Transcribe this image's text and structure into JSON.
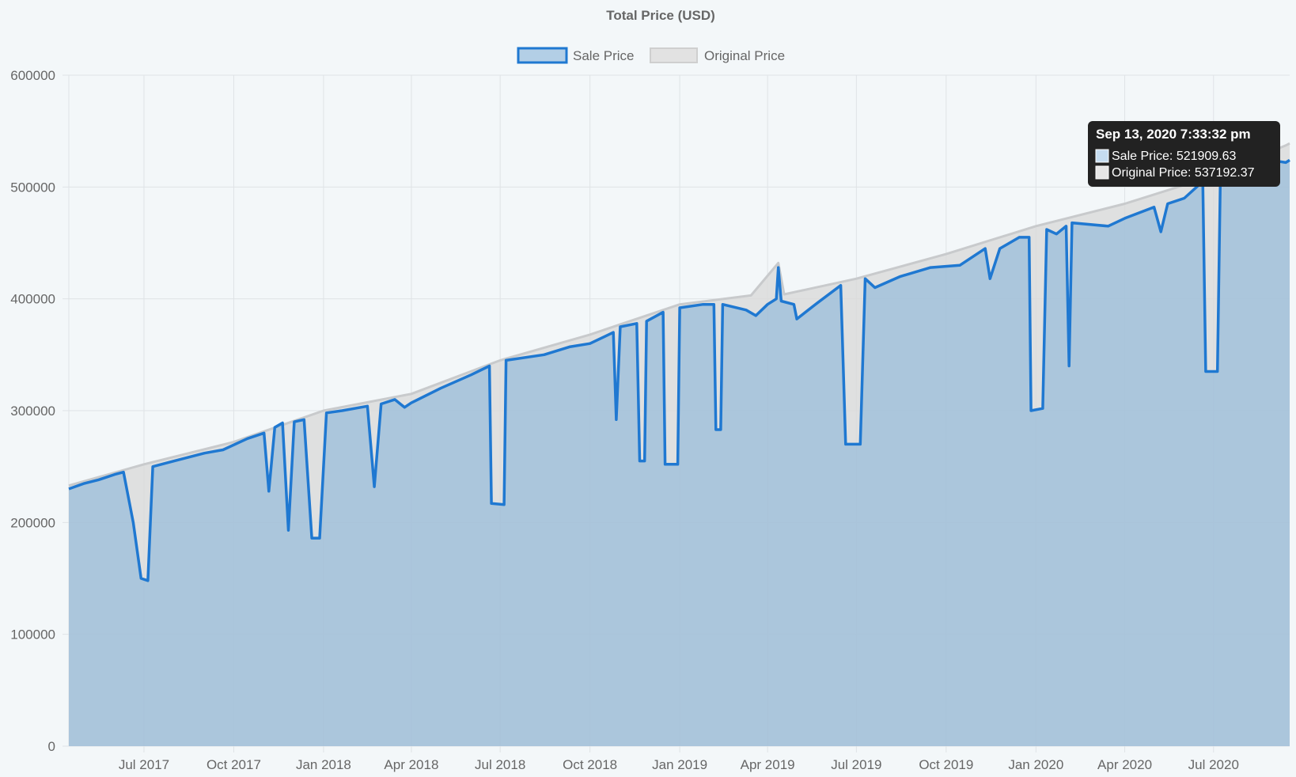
{
  "chart_data": {
    "type": "area",
    "title": "Total Price (USD)",
    "xlabel": "",
    "ylabel": "",
    "ylim": [
      0,
      600000
    ],
    "y_ticks": [
      0,
      100000,
      200000,
      300000,
      400000,
      500000,
      600000
    ],
    "x_range": [
      "2017-04-15",
      "2020-09-17"
    ],
    "x_ticks": [
      {
        "date": "2017-07-01",
        "label": "Jul 2017"
      },
      {
        "date": "2017-10-01",
        "label": "Oct 2017"
      },
      {
        "date": "2018-01-01",
        "label": "Jan 2018"
      },
      {
        "date": "2018-04-01",
        "label": "Apr 2018"
      },
      {
        "date": "2018-07-01",
        "label": "Jul 2018"
      },
      {
        "date": "2018-10-01",
        "label": "Oct 2018"
      },
      {
        "date": "2019-01-01",
        "label": "Jan 2019"
      },
      {
        "date": "2019-04-01",
        "label": "Apr 2019"
      },
      {
        "date": "2019-07-01",
        "label": "Jul 2019"
      },
      {
        "date": "2019-10-01",
        "label": "Oct 2019"
      },
      {
        "date": "2020-01-01",
        "label": "Jan 2020"
      },
      {
        "date": "2020-04-01",
        "label": "Apr 2020"
      },
      {
        "date": "2020-07-01",
        "label": "Jul 2020"
      }
    ],
    "grid": true,
    "legend_position": "top",
    "series": [
      {
        "name": "Sale Price",
        "color": "#1f78d1",
        "fill": "rgba(136,180,216,0.6)",
        "points": [
          [
            "2017-04-15",
            230000
          ],
          [
            "2017-05-01",
            235000
          ],
          [
            "2017-05-15",
            238000
          ],
          [
            "2017-06-01",
            243000
          ],
          [
            "2017-06-10",
            245000
          ],
          [
            "2017-06-20",
            200000
          ],
          [
            "2017-06-28",
            150000
          ],
          [
            "2017-07-05",
            148000
          ],
          [
            "2017-07-10",
            250000
          ],
          [
            "2017-08-01",
            255000
          ],
          [
            "2017-09-01",
            262000
          ],
          [
            "2017-09-20",
            265000
          ],
          [
            "2017-10-15",
            275000
          ],
          [
            "2017-11-01",
            280000
          ],
          [
            "2017-11-06",
            228000
          ],
          [
            "2017-11-12",
            285000
          ],
          [
            "2017-11-20",
            289000
          ],
          [
            "2017-11-26",
            193000
          ],
          [
            "2017-12-02",
            290000
          ],
          [
            "2017-12-12",
            292000
          ],
          [
            "2017-12-20",
            186000
          ],
          [
            "2017-12-28",
            186000
          ],
          [
            "2018-01-04",
            298000
          ],
          [
            "2018-01-20",
            300000
          ],
          [
            "2018-02-15",
            304000
          ],
          [
            "2018-02-22",
            232000
          ],
          [
            "2018-03-01",
            306000
          ],
          [
            "2018-03-15",
            310000
          ],
          [
            "2018-03-25",
            303000
          ],
          [
            "2018-04-01",
            307000
          ],
          [
            "2018-05-01",
            320000
          ],
          [
            "2018-06-01",
            332000
          ],
          [
            "2018-06-20",
            340000
          ],
          [
            "2018-06-22",
            217000
          ],
          [
            "2018-07-05",
            216000
          ],
          [
            "2018-07-07",
            345000
          ],
          [
            "2018-08-15",
            350000
          ],
          [
            "2018-09-10",
            357000
          ],
          [
            "2018-10-01",
            360000
          ],
          [
            "2018-10-25",
            370000
          ],
          [
            "2018-10-28",
            292000
          ],
          [
            "2018-11-01",
            375000
          ],
          [
            "2018-11-18",
            378000
          ],
          [
            "2018-11-21",
            255000
          ],
          [
            "2018-11-26",
            255000
          ],
          [
            "2018-11-28",
            380000
          ],
          [
            "2018-12-15",
            388000
          ],
          [
            "2018-12-17",
            252000
          ],
          [
            "2018-12-30",
            252000
          ],
          [
            "2019-01-01",
            392000
          ],
          [
            "2019-01-25",
            395000
          ],
          [
            "2019-02-05",
            395000
          ],
          [
            "2019-02-07",
            283000
          ],
          [
            "2019-02-12",
            283000
          ],
          [
            "2019-02-14",
            395000
          ],
          [
            "2019-03-10",
            390000
          ],
          [
            "2019-03-20",
            385000
          ],
          [
            "2019-04-01",
            395000
          ],
          [
            "2019-04-10",
            400000
          ],
          [
            "2019-04-12",
            428000
          ],
          [
            "2019-04-15",
            398000
          ],
          [
            "2019-04-28",
            395000
          ],
          [
            "2019-05-01",
            382000
          ],
          [
            "2019-05-20",
            395000
          ],
          [
            "2019-06-15",
            412000
          ],
          [
            "2019-06-20",
            270000
          ],
          [
            "2019-07-05",
            270000
          ],
          [
            "2019-07-10",
            418000
          ],
          [
            "2019-07-20",
            410000
          ],
          [
            "2019-08-15",
            420000
          ],
          [
            "2019-09-15",
            428000
          ],
          [
            "2019-10-15",
            430000
          ],
          [
            "2019-11-10",
            445000
          ],
          [
            "2019-11-15",
            418000
          ],
          [
            "2019-11-25",
            445000
          ],
          [
            "2019-12-15",
            455000
          ],
          [
            "2019-12-25",
            455000
          ],
          [
            "2019-12-27",
            300000
          ],
          [
            "2020-01-08",
            302000
          ],
          [
            "2020-01-12",
            462000
          ],
          [
            "2020-01-22",
            458000
          ],
          [
            "2020-02-01",
            465000
          ],
          [
            "2020-02-04",
            340000
          ],
          [
            "2020-02-07",
            468000
          ],
          [
            "2020-03-15",
            465000
          ],
          [
            "2020-04-01",
            472000
          ],
          [
            "2020-05-01",
            482000
          ],
          [
            "2020-05-08",
            460000
          ],
          [
            "2020-05-15",
            485000
          ],
          [
            "2020-06-01",
            490000
          ],
          [
            "2020-06-20",
            505000
          ],
          [
            "2020-06-23",
            335000
          ],
          [
            "2020-07-05",
            335000
          ],
          [
            "2020-07-08",
            508000
          ],
          [
            "2020-08-01",
            515000
          ],
          [
            "2020-08-25",
            518000
          ],
          [
            "2020-09-05",
            523000
          ],
          [
            "2020-09-13",
            521909.63
          ],
          [
            "2020-09-17",
            524000
          ]
        ]
      },
      {
        "name": "Original Price",
        "color": "#c8cacc",
        "fill": "rgba(218,218,218,0.8)",
        "points": [
          [
            "2017-04-15",
            233000
          ],
          [
            "2017-07-01",
            252000
          ],
          [
            "2017-10-01",
            272000
          ],
          [
            "2018-01-01",
            300000
          ],
          [
            "2018-04-01",
            315000
          ],
          [
            "2018-07-01",
            345000
          ],
          [
            "2018-10-01",
            368000
          ],
          [
            "2019-01-01",
            395000
          ],
          [
            "2019-03-15",
            403000
          ],
          [
            "2019-04-12",
            432000
          ],
          [
            "2019-04-18",
            404000
          ],
          [
            "2019-07-01",
            418000
          ],
          [
            "2019-10-01",
            440000
          ],
          [
            "2020-01-01",
            465000
          ],
          [
            "2020-04-01",
            485000
          ],
          [
            "2020-07-01",
            510000
          ],
          [
            "2020-09-13",
            537192.37
          ],
          [
            "2020-09-17",
            539000
          ]
        ]
      }
    ],
    "tooltip": {
      "title": "Sep 13, 2020 7:33:32 pm",
      "lines": [
        {
          "label": "Sale Price: 521909.63",
          "swatch": "#c5dcf0"
        },
        {
          "label": "Original Price: 537192.37",
          "swatch": "#e6e6e6"
        }
      ]
    }
  }
}
